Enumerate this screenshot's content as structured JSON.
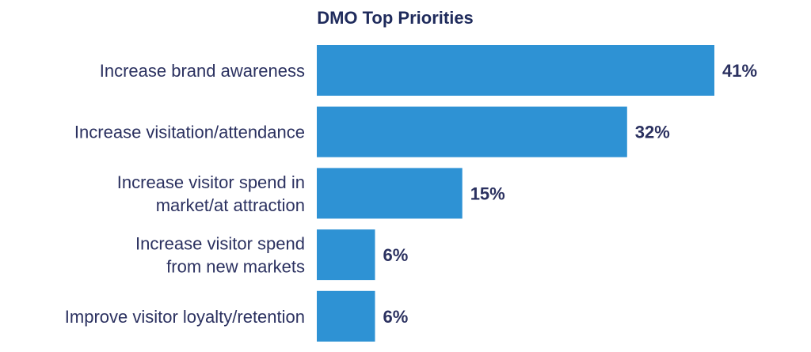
{
  "chart_data": {
    "type": "bar",
    "orientation": "horizontal",
    "title": "DMO Top Priorities",
    "categories": [
      [
        "Increase brand awareness"
      ],
      [
        "Increase visitation/attendance"
      ],
      [
        "Increase visitor spend in",
        "market/at attraction"
      ],
      [
        "Increase visitor spend",
        "from new markets"
      ],
      [
        "Improve visitor loyalty/retention"
      ]
    ],
    "values": [
      41,
      32,
      15,
      6,
      6
    ],
    "value_labels": [
      "41%",
      "32%",
      "15%",
      "6%",
      "6%"
    ],
    "xlabel": "",
    "ylabel": "",
    "grid": false,
    "colors": {
      "bar": "#2e92d4",
      "text": "#2b3160",
      "title": "#1f2b5c"
    }
  }
}
